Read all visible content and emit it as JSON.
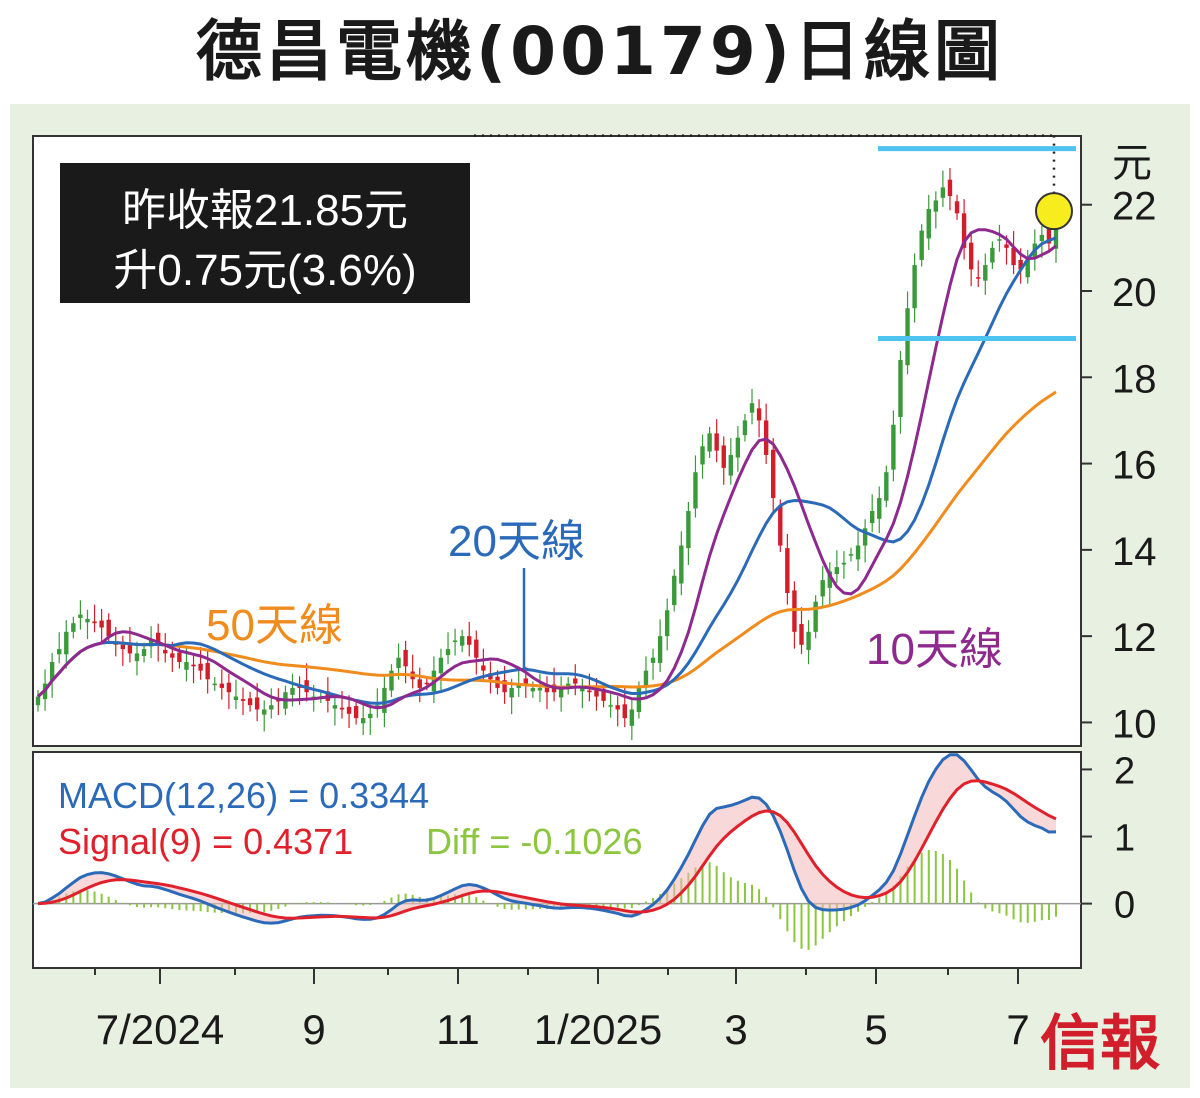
{
  "title": "德昌電機(00179)日線圖",
  "info_box": {
    "line1": "昨收報21.85元",
    "line2": "升0.75元(3.6%)"
  },
  "brand": "信報",
  "colors": {
    "up_candle": "#3a9a3a",
    "down_candle": "#d21e2a",
    "ma10": "#8e2a8e",
    "ma20": "#2a6ab8",
    "ma50": "#f08c1e",
    "macd": "#2a6ab8",
    "signal": "#e0202a",
    "diff": "#8cc63f",
    "support_resistance": "#4fc3f0",
    "highlight_circle": "#f7ec1e",
    "info_box_bg": "#1a1a1a",
    "panel_bg": "#e8f0e2"
  },
  "chart_data": [
    {
      "type": "candlestick",
      "yaxis_unit": "元",
      "ylim": [
        9.5,
        23.5
      ],
      "yticks": [
        10,
        12,
        14,
        16,
        18,
        20,
        22
      ],
      "xtick_labels": [
        "7/2024",
        "9",
        "11",
        "1/2025",
        "3",
        "5",
        "7"
      ],
      "series": [
        {
          "name": "10天線",
          "values": []
        },
        {
          "name": "20天線",
          "values": []
        },
        {
          "name": "50天線",
          "values": []
        }
      ],
      "close": [
        10.6,
        10.9,
        11.4,
        11.7,
        12.1,
        12.3,
        12.5,
        12.4,
        12.3,
        12.2,
        12.0,
        11.8,
        11.7,
        11.6,
        11.6,
        11.7,
        11.9,
        11.8,
        11.6,
        11.5,
        11.4,
        11.4,
        11.3,
        11.2,
        11.0,
        10.9,
        10.8,
        10.7,
        10.6,
        10.5,
        10.4,
        10.3,
        10.3,
        10.4,
        10.5,
        10.7,
        10.8,
        10.8,
        10.7,
        10.6,
        10.6,
        10.5,
        10.4,
        10.3,
        10.2,
        10.1,
        10.1,
        10.2,
        10.4,
        10.8,
        11.2,
        11.5,
        11.3,
        11.0,
        10.8,
        10.9,
        11.2,
        11.5,
        11.7,
        11.9,
        12.0,
        11.8,
        11.5,
        11.2,
        11.0,
        10.8,
        10.7,
        10.8,
        10.9,
        10.9,
        10.8,
        10.8,
        10.7,
        10.7,
        10.8,
        10.9,
        10.9,
        10.8,
        10.7,
        10.6,
        10.5,
        10.4,
        10.3,
        10.1,
        10.3,
        10.8,
        11.2,
        11.5,
        12.0,
        12.6,
        13.4,
        14.1,
        14.9,
        15.8,
        16.4,
        16.7,
        16.3,
        15.9,
        16.2,
        16.6,
        17.0,
        17.4,
        17.0,
        16.2,
        15.2,
        14.1,
        13.0,
        12.1,
        11.8,
        12.1,
        12.8,
        13.3,
        13.5,
        13.6,
        13.7,
        13.9,
        14.1,
        14.5,
        14.9,
        15.2,
        15.8,
        16.9,
        18.4,
        19.6,
        20.6,
        21.4,
        21.9,
        22.1,
        22.4,
        22.2,
        21.8,
        21.0,
        20.5,
        20.3,
        20.6,
        21.0,
        21.2,
        21.0,
        20.6,
        20.5,
        20.8,
        21.1,
        21.3,
        21.1,
        21.85
      ],
      "highlight_last_close": 21.85,
      "support_level": 18.9,
      "resistance_level": 23.3,
      "annotations": [
        "20天線",
        "50天線",
        "10天線"
      ]
    },
    {
      "type": "line",
      "ylim": [
        -0.9,
        2.2
      ],
      "yticks": [
        0,
        1,
        2
      ],
      "series": [
        {
          "name": "MACD",
          "values": []
        },
        {
          "name": "Signal",
          "values": []
        },
        {
          "name": "Diff",
          "values": []
        }
      ],
      "labels": {
        "macd": "MACD(12,26) = 0.3344",
        "signal": "Signal(9) = 0.4371",
        "diff": "Diff = -0.1026"
      },
      "last_values": {
        "macd": 0.3344,
        "signal": 0.4371,
        "diff": -0.1026
      }
    }
  ]
}
